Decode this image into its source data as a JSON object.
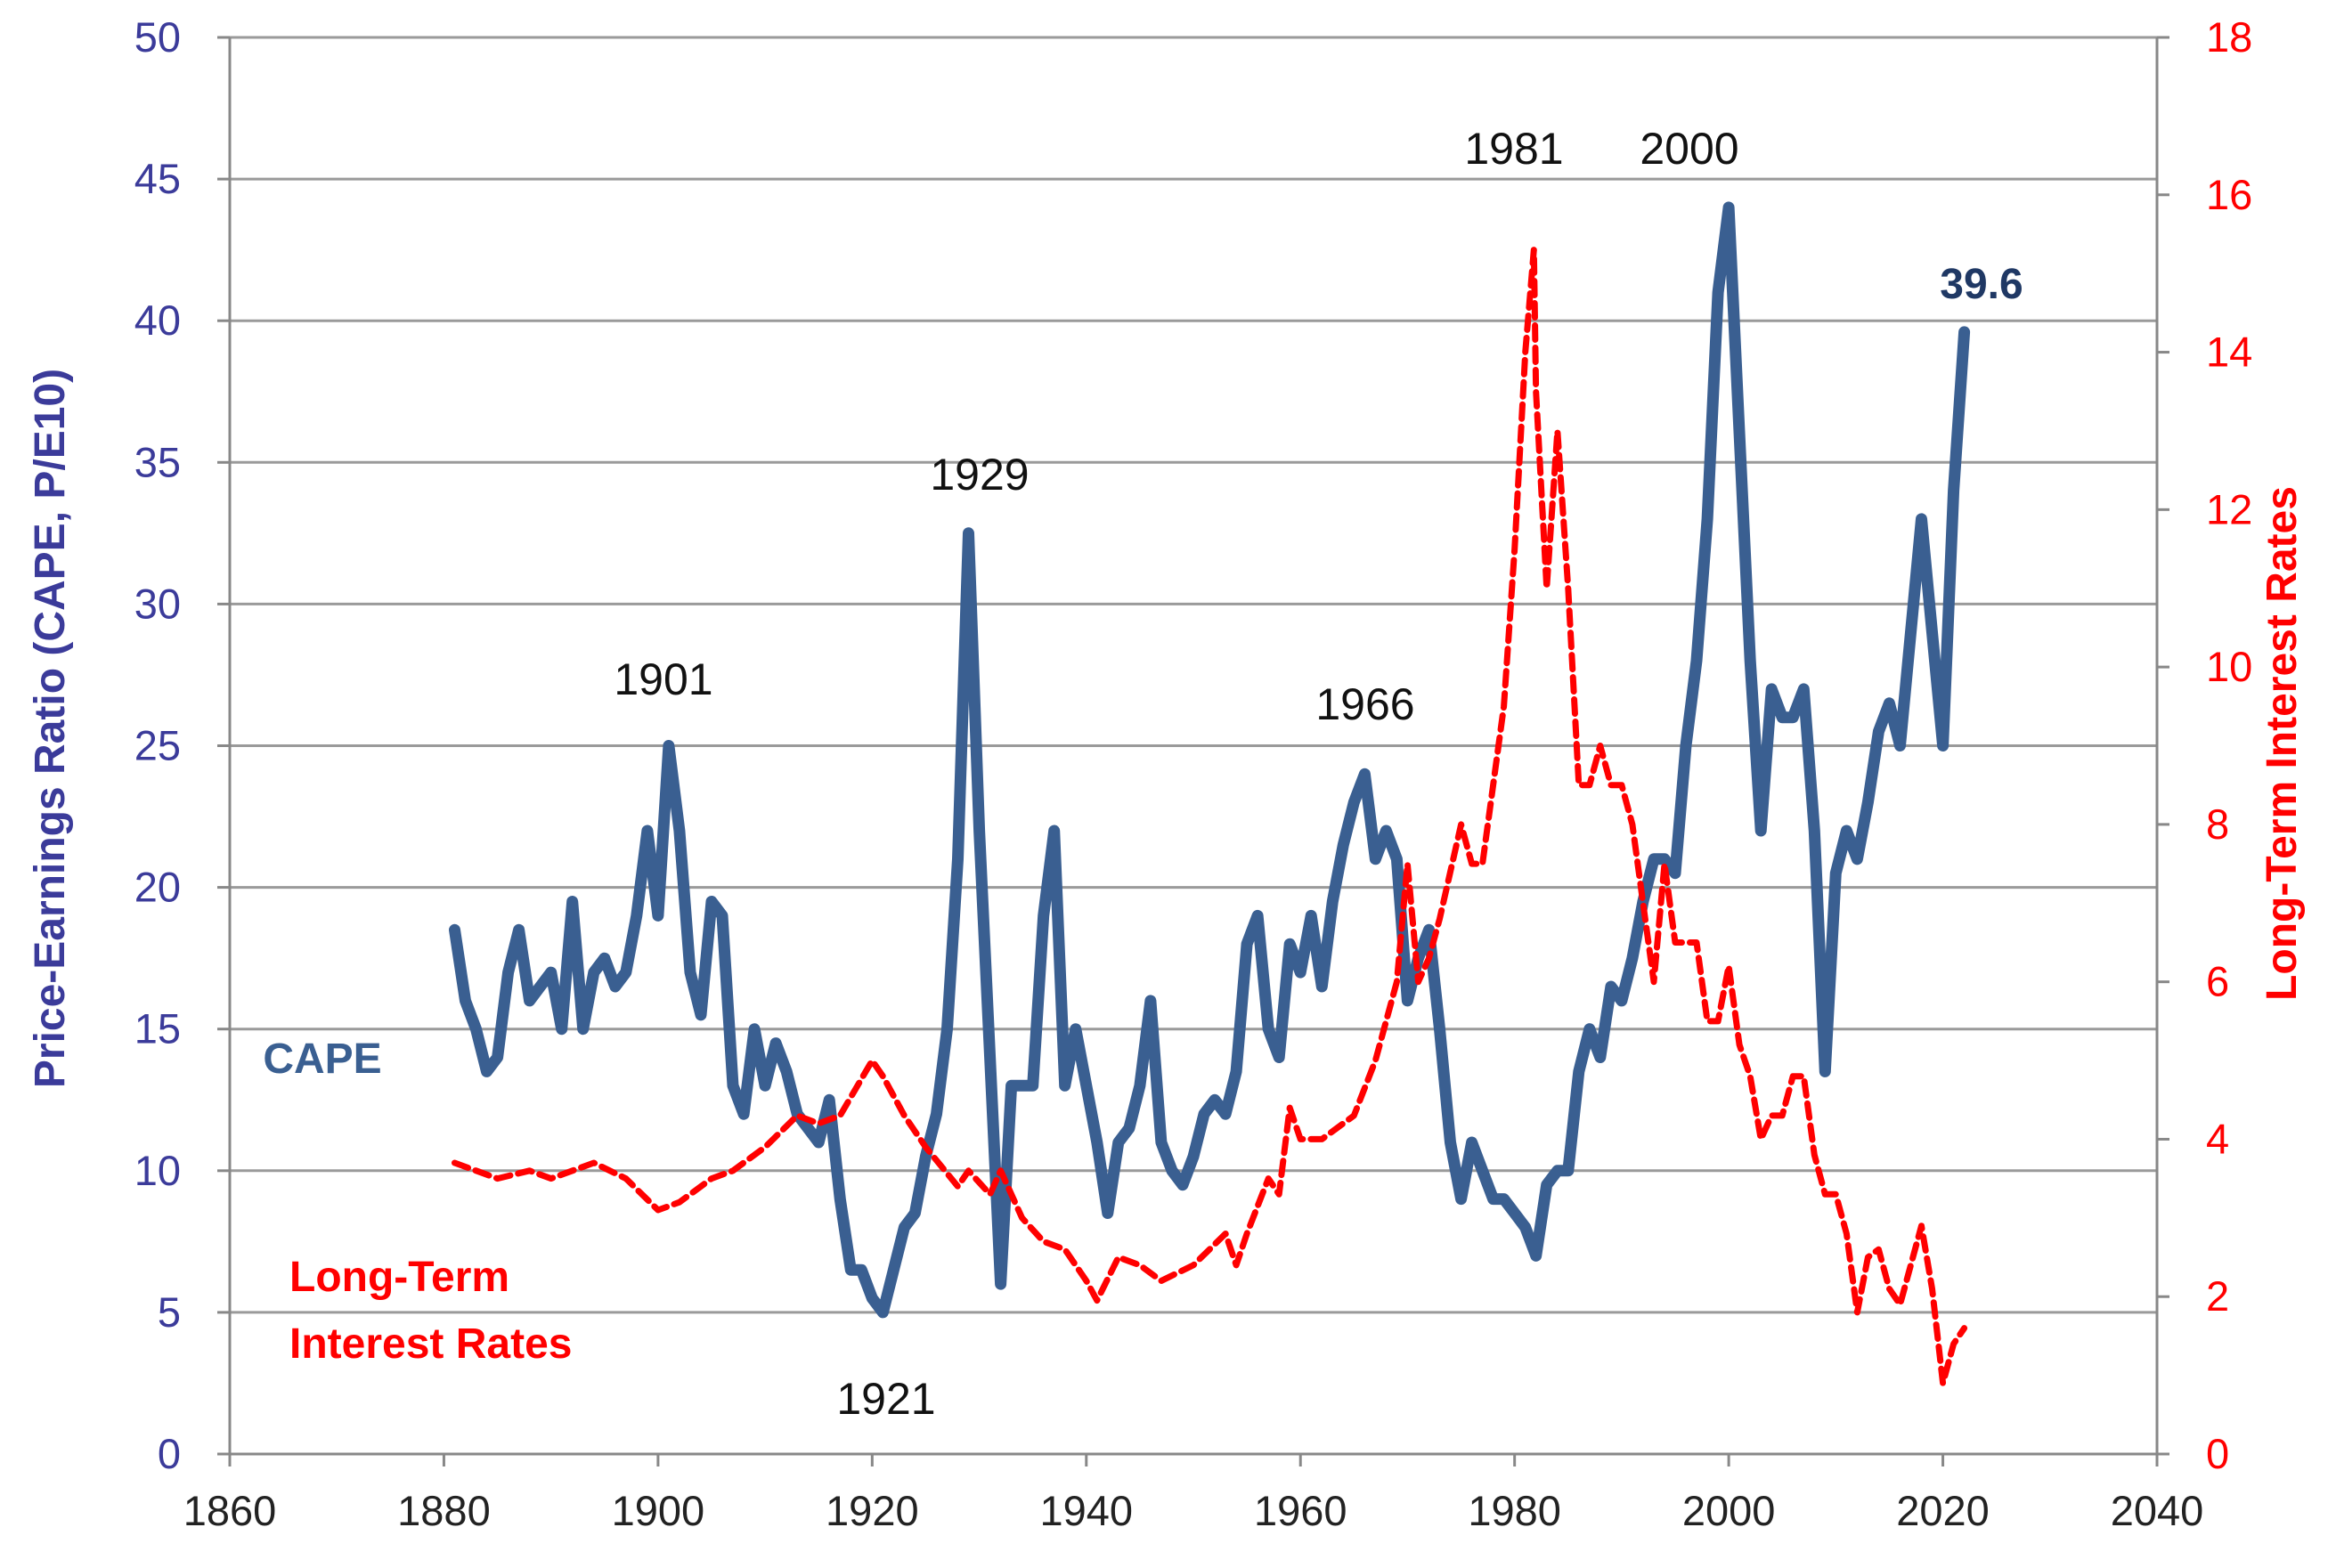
{
  "chart_data": {
    "type": "line",
    "xlabel": "",
    "ylabel": "Price-Earnings Ratio (CAPE, P/E10)",
    "y2label": "Long-Term Interest Rates",
    "xlim": [
      1860,
      2040
    ],
    "ylim": [
      0,
      50
    ],
    "y2lim": [
      0,
      18
    ],
    "x_ticks": [
      "1860",
      "1880",
      "1900",
      "1920",
      "1940",
      "1960",
      "1980",
      "2000",
      "2020",
      "2040"
    ],
    "y_ticks": [
      "0",
      "5",
      "10",
      "15",
      "20",
      "25",
      "30",
      "35",
      "40",
      "45",
      "50"
    ],
    "y2_ticks": [
      "0",
      "2",
      "4",
      "6",
      "8",
      "10",
      "12",
      "14",
      "16",
      "18"
    ],
    "grid": "horizontal",
    "colors": {
      "cape": "#3a5f91",
      "rates": "#ff0000",
      "left_axis": "#3b3b9a",
      "cape_label": "#1f3864"
    },
    "series": [
      {
        "name": "CAPE",
        "axis": "left",
        "style": "solid",
        "x": [
          1881,
          1882,
          1883,
          1884,
          1885,
          1886,
          1887,
          1888,
          1889,
          1890,
          1891,
          1892,
          1893,
          1894,
          1895,
          1896,
          1897,
          1898,
          1899,
          1900,
          1901,
          1902,
          1903,
          1904,
          1905,
          1906,
          1907,
          1908,
          1909,
          1910,
          1911,
          1912,
          1913,
          1914,
          1915,
          1916,
          1917,
          1918,
          1919,
          1920,
          1921,
          1922,
          1923,
          1924,
          1925,
          1926,
          1927,
          1928,
          1929,
          1930,
          1931,
          1932,
          1933,
          1934,
          1935,
          1936,
          1937,
          1938,
          1939,
          1940,
          1941,
          1942,
          1943,
          1944,
          1945,
          1946,
          1947,
          1948,
          1949,
          1950,
          1951,
          1952,
          1953,
          1954,
          1955,
          1956,
          1957,
          1958,
          1959,
          1960,
          1961,
          1962,
          1963,
          1964,
          1965,
          1966,
          1967,
          1968,
          1969,
          1970,
          1971,
          1972,
          1973,
          1974,
          1975,
          1976,
          1977,
          1978,
          1979,
          1980,
          1981,
          1982,
          1983,
          1984,
          1985,
          1986,
          1987,
          1988,
          1989,
          1990,
          1991,
          1992,
          1993,
          1994,
          1995,
          1996,
          1997,
          1998,
          1999,
          2000,
          2001,
          2002,
          2003,
          2004,
          2005,
          2006,
          2007,
          2008,
          2009,
          2010,
          2011,
          2012,
          2013,
          2014,
          2015,
          2016,
          2017,
          2018,
          2019,
          2020,
          2021,
          2022
        ],
        "values": [
          18.5,
          16,
          15,
          13.5,
          14,
          17,
          18.5,
          16,
          16.5,
          17,
          15,
          19.5,
          15,
          17,
          17.5,
          16.5,
          17,
          19,
          22,
          19,
          25,
          22,
          17,
          15.5,
          19.5,
          19,
          13,
          12,
          15,
          13,
          14.5,
          13.5,
          12,
          11.5,
          11,
          12.5,
          9,
          6.5,
          6.5,
          5.5,
          5,
          6.5,
          8,
          8.5,
          10.5,
          12,
          15,
          21,
          32.5,
          22,
          14,
          6,
          13,
          13,
          13,
          19,
          22,
          13,
          15,
          13,
          11,
          8.5,
          11,
          11.5,
          13,
          16,
          11,
          10,
          9.5,
          10.5,
          12,
          12.5,
          12,
          13.5,
          18,
          19,
          15,
          14,
          18,
          17,
          19,
          16.5,
          19.5,
          21.5,
          23,
          24,
          21,
          22,
          21,
          16,
          17.5,
          18.5,
          15,
          11,
          9,
          11,
          10,
          9,
          9,
          8.5,
          8,
          7,
          9.5,
          10,
          10,
          13.5,
          15,
          14,
          16.5,
          16,
          17.5,
          19.5,
          21,
          21,
          20.5,
          25,
          28,
          33,
          41,
          44,
          36,
          28,
          22,
          27,
          26,
          26,
          27,
          22,
          13.5,
          20.5,
          22,
          21,
          23,
          25.5,
          26.5,
          25,
          29,
          33,
          29,
          25,
          34,
          39.6
        ]
      },
      {
        "name": "Long-Term Interest Rates",
        "axis": "right",
        "style": "dashed",
        "x": [
          1881,
          1885,
          1888,
          1890,
          1894,
          1897,
          1900,
          1902,
          1905,
          1907,
          1910,
          1913,
          1915,
          1917,
          1920,
          1921,
          1923,
          1925,
          1928,
          1929,
          1931,
          1932,
          1934,
          1936,
          1938,
          1940,
          1941,
          1943,
          1945,
          1947,
          1950,
          1953,
          1954,
          1955,
          1957,
          1958,
          1959,
          1960,
          1962,
          1965,
          1967,
          1969,
          1970,
          1971,
          1972,
          1973,
          1975,
          1976,
          1977,
          1978,
          1979,
          1980,
          1981,
          1981.8,
          1982,
          1983,
          1984,
          1985,
          1986,
          1987,
          1988,
          1989,
          1990,
          1991,
          1992,
          1993,
          1994,
          1995,
          1996,
          1997,
          1998,
          1999,
          2000,
          2001,
          2002,
          2003,
          2004,
          2005,
          2006,
          2007,
          2008,
          2009,
          2010,
          2011,
          2012,
          2013,
          2014,
          2015,
          2016,
          2017,
          2018,
          2019,
          2020,
          2021,
          2022
        ],
        "values": [
          3.7,
          3.5,
          3.6,
          3.5,
          3.7,
          3.5,
          3.1,
          3.2,
          3.5,
          3.6,
          3.9,
          4.3,
          4.2,
          4.3,
          5.0,
          4.8,
          4.3,
          3.9,
          3.4,
          3.6,
          3.3,
          3.6,
          3.0,
          2.7,
          2.6,
          2.2,
          1.95,
          2.5,
          2.4,
          2.2,
          2.4,
          2.8,
          2.4,
          2.8,
          3.5,
          3.3,
          4.4,
          4.0,
          4.0,
          4.3,
          5.0,
          6.0,
          7.5,
          6.0,
          6.3,
          6.8,
          8.0,
          7.5,
          7.5,
          8.5,
          9.5,
          11.5,
          14,
          15.3,
          13.5,
          11,
          13,
          11,
          8.5,
          8.5,
          9,
          8.5,
          8.5,
          8,
          7,
          6,
          7.5,
          6.5,
          6.5,
          6.5,
          5.5,
          5.5,
          6.2,
          5.2,
          4.8,
          4.0,
          4.3,
          4.3,
          4.8,
          4.8,
          3.8,
          3.3,
          3.3,
          2.8,
          1.8,
          2.5,
          2.6,
          2.1,
          1.9,
          2.4,
          2.9,
          2.1,
          0.9,
          1.4,
          1.6
        ]
      }
    ],
    "annotations": {
      "p1901": "1901",
      "p1929": "1929",
      "p1921": "1921",
      "p1966": "1966",
      "p1981": "1981",
      "p2000": "2000",
      "current": "39.6",
      "cape_label": "CAPE",
      "rates_label_1": "Long-Term",
      "rates_label_2": "Interest Rates"
    }
  }
}
